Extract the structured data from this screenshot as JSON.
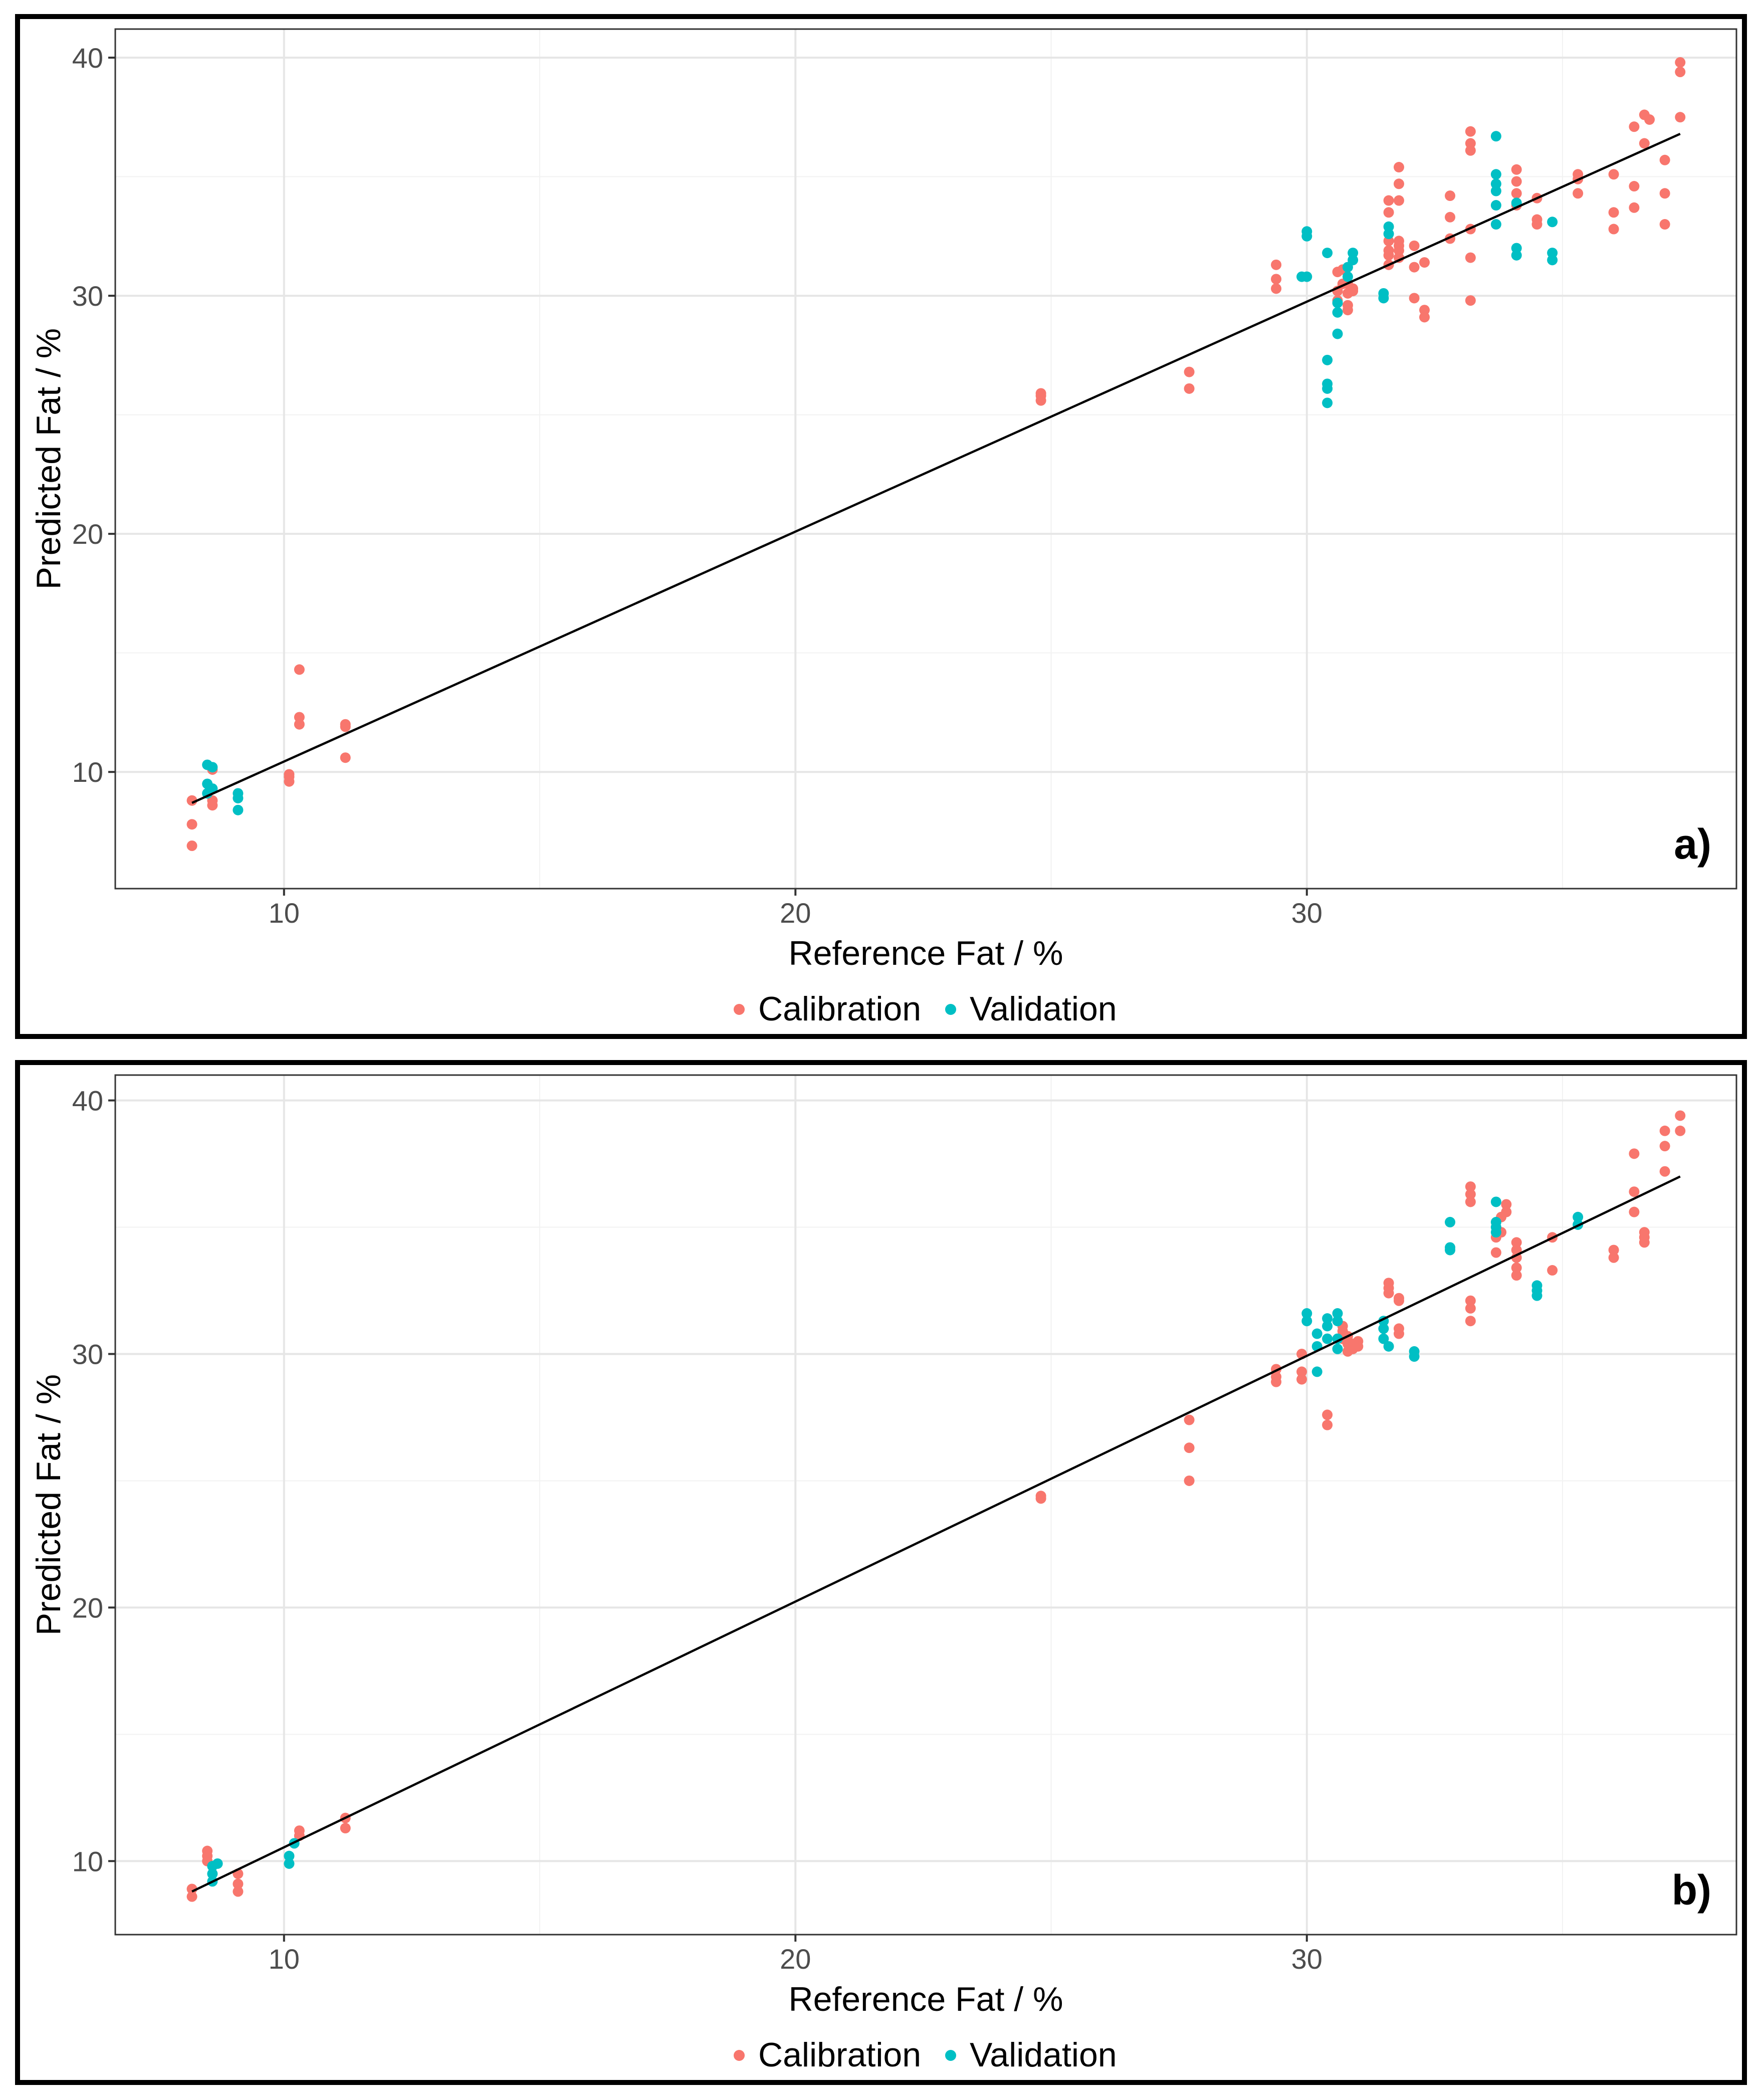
{
  "chart_data": [
    {
      "type": "scatter",
      "panel_label": "a)",
      "xlabel": "Reference Fat / %",
      "ylabel": "Predicted Fat / %",
      "xlim": [
        6.7,
        38.4
      ],
      "ylim": [
        5.1,
        41.2
      ],
      "xticks": [
        10,
        20,
        30
      ],
      "yticks": [
        10,
        20,
        30,
        40
      ],
      "grid": true,
      "legend_position": "bottom",
      "fit_line": {
        "x": [
          8.2,
          37.3
        ],
        "y": [
          8.7,
          36.8
        ]
      },
      "series": [
        {
          "name": "Calibration",
          "color": "#F8766D",
          "points": [
            [
              8.2,
              6.9
            ],
            [
              8.2,
              7.8
            ],
            [
              8.2,
              8.8
            ],
            [
              8.6,
              8.6
            ],
            [
              8.6,
              8.8
            ],
            [
              8.6,
              10.1
            ],
            [
              10.1,
              9.6
            ],
            [
              10.1,
              9.8
            ],
            [
              10.1,
              9.9
            ],
            [
              10.3,
              12.0
            ],
            [
              10.3,
              12.3
            ],
            [
              10.3,
              14.3
            ],
            [
              11.2,
              10.6
            ],
            [
              11.2,
              11.9
            ],
            [
              11.2,
              12.0
            ],
            [
              24.8,
              25.6
            ],
            [
              24.8,
              25.8
            ],
            [
              24.8,
              25.9
            ],
            [
              27.7,
              26.1
            ],
            [
              27.7,
              26.8
            ],
            [
              29.4,
              30.3
            ],
            [
              29.4,
              30.7
            ],
            [
              29.4,
              31.3
            ],
            [
              30.6,
              29.8
            ],
            [
              30.6,
              30.2
            ],
            [
              30.6,
              31.0
            ],
            [
              30.7,
              30.5
            ],
            [
              30.7,
              31.1
            ],
            [
              30.8,
              29.4
            ],
            [
              30.8,
              29.6
            ],
            [
              30.8,
              30.1
            ],
            [
              30.8,
              30.5
            ],
            [
              30.9,
              30.2
            ],
            [
              30.9,
              30.3
            ],
            [
              31.6,
              31.3
            ],
            [
              31.6,
              31.7
            ],
            [
              31.6,
              31.9
            ],
            [
              31.6,
              32.3
            ],
            [
              31.6,
              33.5
            ],
            [
              31.6,
              34.0
            ],
            [
              31.8,
              31.6
            ],
            [
              31.8,
              31.9
            ],
            [
              31.8,
              32.1
            ],
            [
              31.8,
              32.3
            ],
            [
              31.8,
              34.0
            ],
            [
              31.8,
              34.7
            ],
            [
              31.8,
              35.4
            ],
            [
              32.1,
              29.9
            ],
            [
              32.1,
              31.2
            ],
            [
              32.1,
              32.1
            ],
            [
              32.3,
              29.1
            ],
            [
              32.3,
              29.4
            ],
            [
              32.3,
              31.4
            ],
            [
              32.8,
              32.4
            ],
            [
              32.8,
              33.3
            ],
            [
              32.8,
              34.2
            ],
            [
              33.2,
              29.8
            ],
            [
              33.2,
              31.6
            ],
            [
              33.2,
              32.8
            ],
            [
              33.2,
              36.1
            ],
            [
              33.2,
              36.4
            ],
            [
              33.2,
              36.9
            ],
            [
              34.1,
              33.8
            ],
            [
              34.1,
              34.3
            ],
            [
              34.1,
              34.8
            ],
            [
              34.1,
              35.3
            ],
            [
              34.5,
              33.0
            ],
            [
              34.5,
              33.2
            ],
            [
              34.5,
              34.1
            ],
            [
              35.3,
              34.3
            ],
            [
              35.3,
              34.9
            ],
            [
              35.3,
              35.1
            ],
            [
              36.0,
              32.8
            ],
            [
              36.0,
              33.5
            ],
            [
              36.0,
              35.1
            ],
            [
              36.4,
              33.7
            ],
            [
              36.4,
              34.6
            ],
            [
              36.4,
              37.1
            ],
            [
              36.6,
              36.4
            ],
            [
              36.6,
              37.6
            ],
            [
              36.7,
              37.4
            ],
            [
              37.0,
              33.0
            ],
            [
              37.0,
              34.3
            ],
            [
              37.0,
              35.7
            ],
            [
              37.3,
              37.5
            ],
            [
              37.3,
              39.4
            ],
            [
              37.3,
              39.8
            ]
          ]
        },
        {
          "name": "Validation",
          "color": "#00BFC4",
          "points": [
            [
              8.5,
              9.1
            ],
            [
              8.5,
              9.5
            ],
            [
              8.5,
              10.3
            ],
            [
              8.6,
              9.3
            ],
            [
              8.6,
              10.2
            ],
            [
              9.1,
              8.4
            ],
            [
              9.1,
              8.9
            ],
            [
              9.1,
              9.1
            ],
            [
              29.9,
              30.8
            ],
            [
              30.0,
              30.8
            ],
            [
              30.0,
              32.5
            ],
            [
              30.0,
              32.7
            ],
            [
              30.4,
              25.5
            ],
            [
              30.4,
              26.1
            ],
            [
              30.4,
              26.3
            ],
            [
              30.4,
              27.3
            ],
            [
              30.4,
              31.8
            ],
            [
              30.6,
              28.4
            ],
            [
              30.6,
              29.3
            ],
            [
              30.6,
              29.7
            ],
            [
              30.8,
              30.8
            ],
            [
              30.8,
              31.2
            ],
            [
              30.9,
              31.5
            ],
            [
              30.9,
              31.8
            ],
            [
              31.5,
              29.9
            ],
            [
              31.5,
              30.1
            ],
            [
              31.6,
              32.6
            ],
            [
              31.6,
              32.9
            ],
            [
              33.7,
              33.0
            ],
            [
              33.7,
              33.8
            ],
            [
              33.7,
              34.4
            ],
            [
              33.7,
              34.7
            ],
            [
              33.7,
              35.1
            ],
            [
              33.7,
              36.7
            ],
            [
              34.1,
              31.7
            ],
            [
              34.1,
              32.0
            ],
            [
              34.1,
              33.9
            ],
            [
              34.8,
              31.5
            ],
            [
              34.8,
              31.8
            ],
            [
              34.8,
              33.1
            ]
          ]
        }
      ]
    },
    {
      "type": "scatter",
      "panel_label": "b)",
      "xlabel": "Reference Fat / %",
      "ylabel": "Predicted Fat / %",
      "xlim": [
        6.7,
        38.4
      ],
      "ylim": [
        7.1,
        41.0
      ],
      "xticks": [
        10,
        20,
        30
      ],
      "yticks": [
        10,
        20,
        30,
        40
      ],
      "grid": true,
      "legend_position": "bottom",
      "fit_line": {
        "x": [
          8.2,
          37.3
        ],
        "y": [
          8.8,
          37.0
        ]
      },
      "series": [
        {
          "name": "Calibration",
          "color": "#F8766D",
          "points": [
            [
              8.2,
              8.6
            ],
            [
              8.2,
              8.9
            ],
            [
              8.5,
              10.0
            ],
            [
              8.5,
              10.2
            ],
            [
              8.5,
              10.4
            ],
            [
              9.1,
              8.8
            ],
            [
              9.1,
              9.1
            ],
            [
              9.1,
              9.5
            ],
            [
              10.3,
              11.0
            ],
            [
              10.3,
              11.2
            ],
            [
              11.2,
              11.3
            ],
            [
              11.2,
              11.7
            ],
            [
              24.8,
              24.3
            ],
            [
              24.8,
              24.4
            ],
            [
              27.7,
              25.0
            ],
            [
              27.7,
              26.3
            ],
            [
              27.7,
              27.4
            ],
            [
              29.4,
              28.9
            ],
            [
              29.4,
              29.1
            ],
            [
              29.4,
              29.4
            ],
            [
              29.9,
              29.0
            ],
            [
              29.9,
              29.3
            ],
            [
              29.9,
              30.0
            ],
            [
              30.4,
              27.2
            ],
            [
              30.4,
              27.6
            ],
            [
              30.7,
              30.6
            ],
            [
              30.7,
              30.9
            ],
            [
              30.7,
              31.1
            ],
            [
              30.8,
              30.1
            ],
            [
              30.8,
              30.4
            ],
            [
              30.8,
              30.7
            ],
            [
              30.9,
              30.2
            ],
            [
              30.9,
              30.4
            ],
            [
              31.0,
              30.3
            ],
            [
              31.0,
              30.5
            ],
            [
              31.6,
              32.4
            ],
            [
              31.6,
              32.6
            ],
            [
              31.6,
              32.8
            ],
            [
              31.8,
              30.8
            ],
            [
              31.8,
              31.0
            ],
            [
              31.8,
              32.1
            ],
            [
              31.8,
              32.2
            ],
            [
              33.2,
              31.3
            ],
            [
              33.2,
              31.8
            ],
            [
              33.2,
              32.1
            ],
            [
              33.2,
              36.0
            ],
            [
              33.2,
              36.3
            ],
            [
              33.2,
              36.6
            ],
            [
              33.7,
              34.0
            ],
            [
              33.7,
              34.6
            ],
            [
              33.8,
              34.8
            ],
            [
              33.8,
              35.4
            ],
            [
              33.9,
              35.6
            ],
            [
              33.9,
              35.9
            ],
            [
              34.1,
              33.1
            ],
            [
              34.1,
              33.4
            ],
            [
              34.1,
              33.8
            ],
            [
              34.1,
              34.1
            ],
            [
              34.1,
              34.4
            ],
            [
              34.8,
              33.3
            ],
            [
              34.8,
              34.6
            ],
            [
              36.0,
              33.8
            ],
            [
              36.0,
              34.1
            ],
            [
              36.4,
              35.6
            ],
            [
              36.4,
              36.4
            ],
            [
              36.4,
              37.9
            ],
            [
              36.6,
              34.4
            ],
            [
              36.6,
              34.6
            ],
            [
              36.6,
              34.8
            ],
            [
              37.0,
              37.2
            ],
            [
              37.0,
              38.2
            ],
            [
              37.0,
              38.8
            ],
            [
              37.3,
              38.8
            ],
            [
              37.3,
              39.4
            ]
          ]
        },
        {
          "name": "Validation",
          "color": "#00BFC4",
          "points": [
            [
              8.6,
              9.2
            ],
            [
              8.6,
              9.5
            ],
            [
              8.6,
              9.8
            ],
            [
              8.7,
              9.9
            ],
            [
              10.1,
              9.9
            ],
            [
              10.1,
              10.2
            ],
            [
              10.2,
              10.7
            ],
            [
              30.0,
              31.3
            ],
            [
              30.0,
              31.6
            ],
            [
              30.2,
              29.3
            ],
            [
              30.2,
              30.3
            ],
            [
              30.2,
              30.8
            ],
            [
              30.4,
              30.6
            ],
            [
              30.4,
              31.1
            ],
            [
              30.4,
              31.4
            ],
            [
              30.6,
              30.2
            ],
            [
              30.6,
              30.6
            ],
            [
              30.6,
              31.3
            ],
            [
              30.6,
              31.6
            ],
            [
              31.5,
              30.6
            ],
            [
              31.5,
              31.0
            ],
            [
              31.5,
              31.3
            ],
            [
              31.6,
              30.3
            ],
            [
              32.1,
              29.9
            ],
            [
              32.1,
              30.1
            ],
            [
              32.8,
              34.1
            ],
            [
              32.8,
              34.2
            ],
            [
              32.8,
              35.2
            ],
            [
              33.7,
              34.8
            ],
            [
              33.7,
              35.0
            ],
            [
              33.7,
              35.2
            ],
            [
              33.7,
              36.0
            ],
            [
              34.5,
              32.3
            ],
            [
              34.5,
              32.5
            ],
            [
              34.5,
              32.7
            ],
            [
              35.3,
              35.1
            ],
            [
              35.3,
              35.4
            ]
          ]
        }
      ]
    }
  ]
}
